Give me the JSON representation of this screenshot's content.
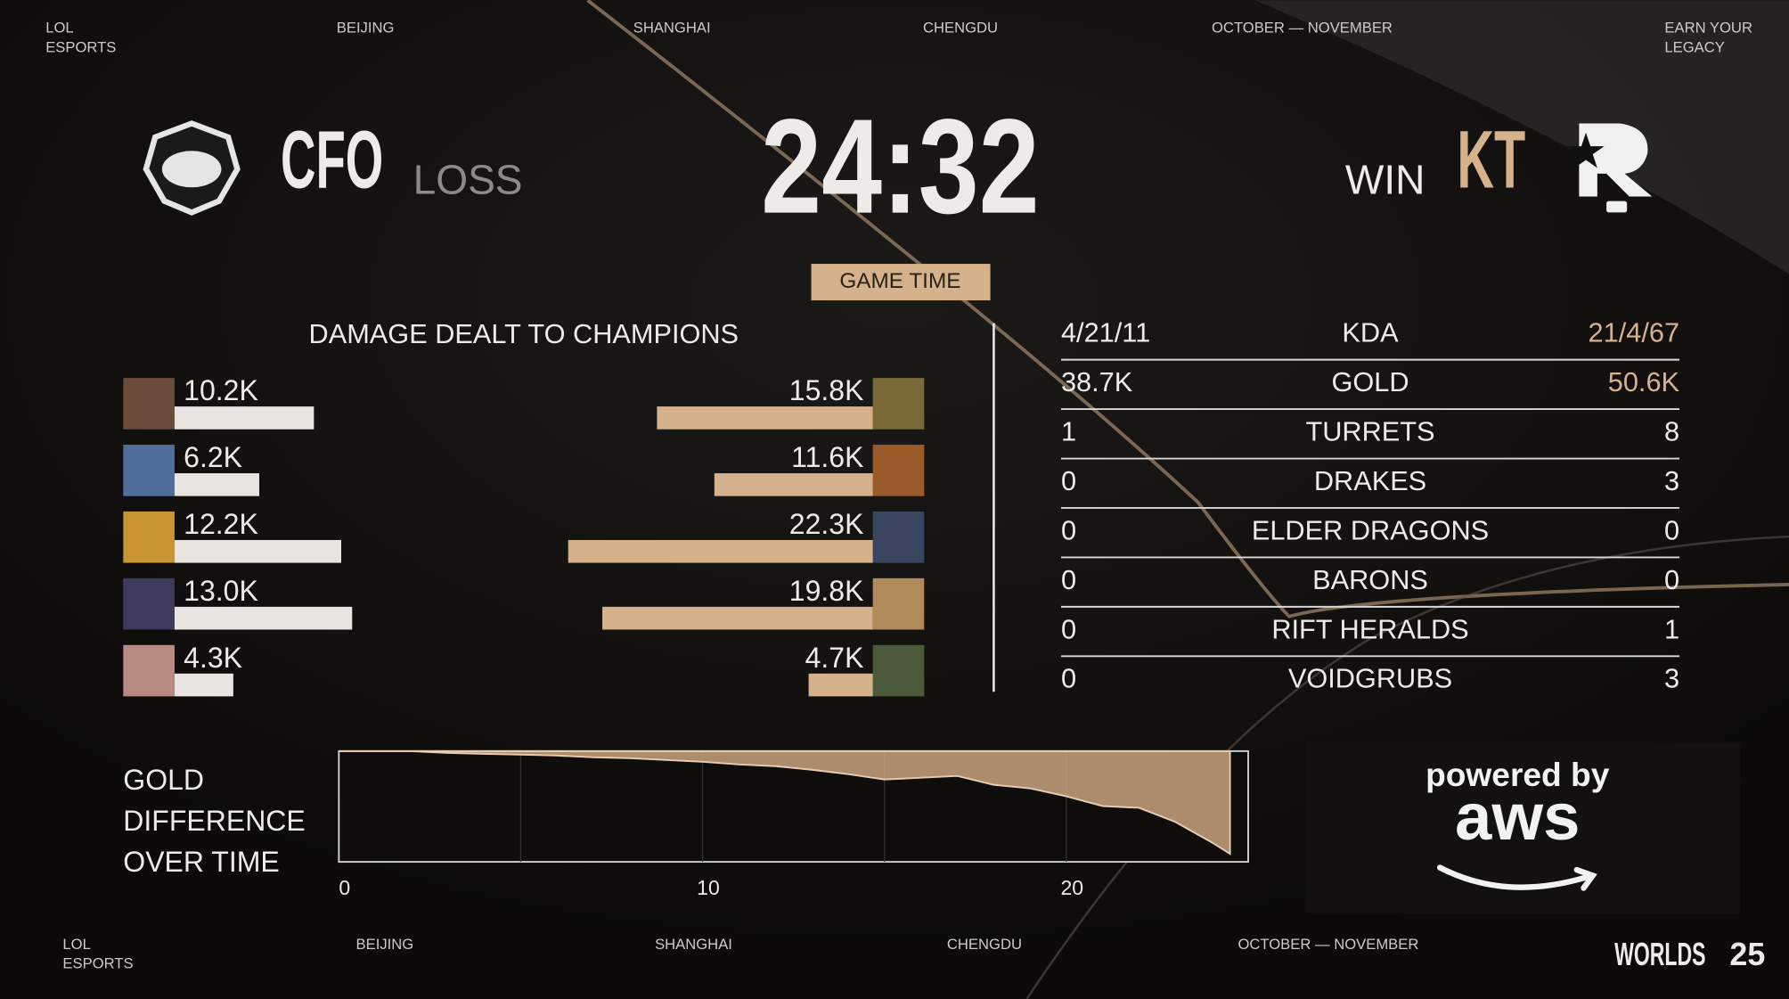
{
  "header": {
    "items": [
      [
        "LOL",
        "ESPORTS"
      ],
      [
        "BEIJING"
      ],
      [
        "SHANGHAI"
      ],
      [
        "CHENGDU"
      ],
      [
        "OCTOBER — NOVEMBER"
      ],
      [
        "EARN YOUR",
        "LEGACY"
      ]
    ]
  },
  "teams": {
    "left": {
      "name": "CFO",
      "result": "LOSS"
    },
    "right": {
      "name": "KT",
      "result": "WIN"
    }
  },
  "game_time": {
    "value": "24:32",
    "label": "GAME TIME"
  },
  "chart_data": [
    {
      "type": "bar",
      "orientation": "horizontal",
      "title": "DAMAGE DEALT TO CHAMPIONS",
      "series": [
        {
          "color": "#e8e4df",
          "values": [
            10200,
            6200,
            12200,
            13000,
            4300
          ],
          "value_labels": [
            "10.2K",
            "6.2K",
            "12.2K",
            "13.0K",
            "4.3K"
          ]
        },
        {
          "color": "#d6b28c",
          "values": [
            15800,
            11600,
            22300,
            19800,
            4700
          ],
          "value_labels": [
            "15.8K",
            "11.6K",
            "22.3K",
            "19.8K",
            "4.7K"
          ]
        }
      ]
    },
    {
      "type": "area",
      "title": [
        "GOLD",
        "DIFFERENCE",
        "OVER TIME"
      ],
      "color": "#c9a37f",
      "x": [
        0,
        1,
        2,
        3,
        4,
        5,
        6,
        7,
        8,
        9,
        10,
        11,
        12,
        13,
        14,
        15,
        16,
        17,
        18,
        19,
        20,
        21,
        22,
        23,
        24,
        24.5
      ],
      "values": [
        0,
        0,
        0,
        -200,
        -300,
        -400,
        -500,
        -700,
        -800,
        -1000,
        -1200,
        -1500,
        -1700,
        -2100,
        -2600,
        -3200,
        -3000,
        -2800,
        -3800,
        -4200,
        -5100,
        -6200,
        -6400,
        -8000,
        -10300,
        -11600
      ],
      "xlim": [
        0,
        25
      ],
      "xticks": [
        0,
        10,
        20
      ],
      "ylim": [
        -12500,
        0
      ],
      "grid": true
    }
  ],
  "stats": {
    "rows": [
      [
        "4/21/11",
        "KDA",
        "21/4/67"
      ],
      [
        "38.7K",
        "GOLD",
        "50.6K"
      ],
      [
        1,
        "TURRETS",
        8
      ],
      [
        0,
        "DRAKES",
        3
      ],
      [
        0,
        "ELDER DRAGONS",
        0
      ],
      [
        0,
        "BARONS",
        0
      ],
      [
        0,
        "RIFT HERALDS",
        1
      ],
      [
        0,
        "VOIDGRUBS",
        3
      ]
    ]
  },
  "sponsor": {
    "lines": [
      "powered by",
      "aws"
    ]
  },
  "footer": {
    "items": [
      [
        "LOL",
        "ESPORTS"
      ],
      [
        "BEIJING"
      ],
      [
        "SHANGHAI"
      ],
      [
        "CHENGDU"
      ],
      [
        "OCTOBER — NOVEMBER"
      ]
    ],
    "logo": [
      "WORLDS",
      "25"
    ]
  }
}
